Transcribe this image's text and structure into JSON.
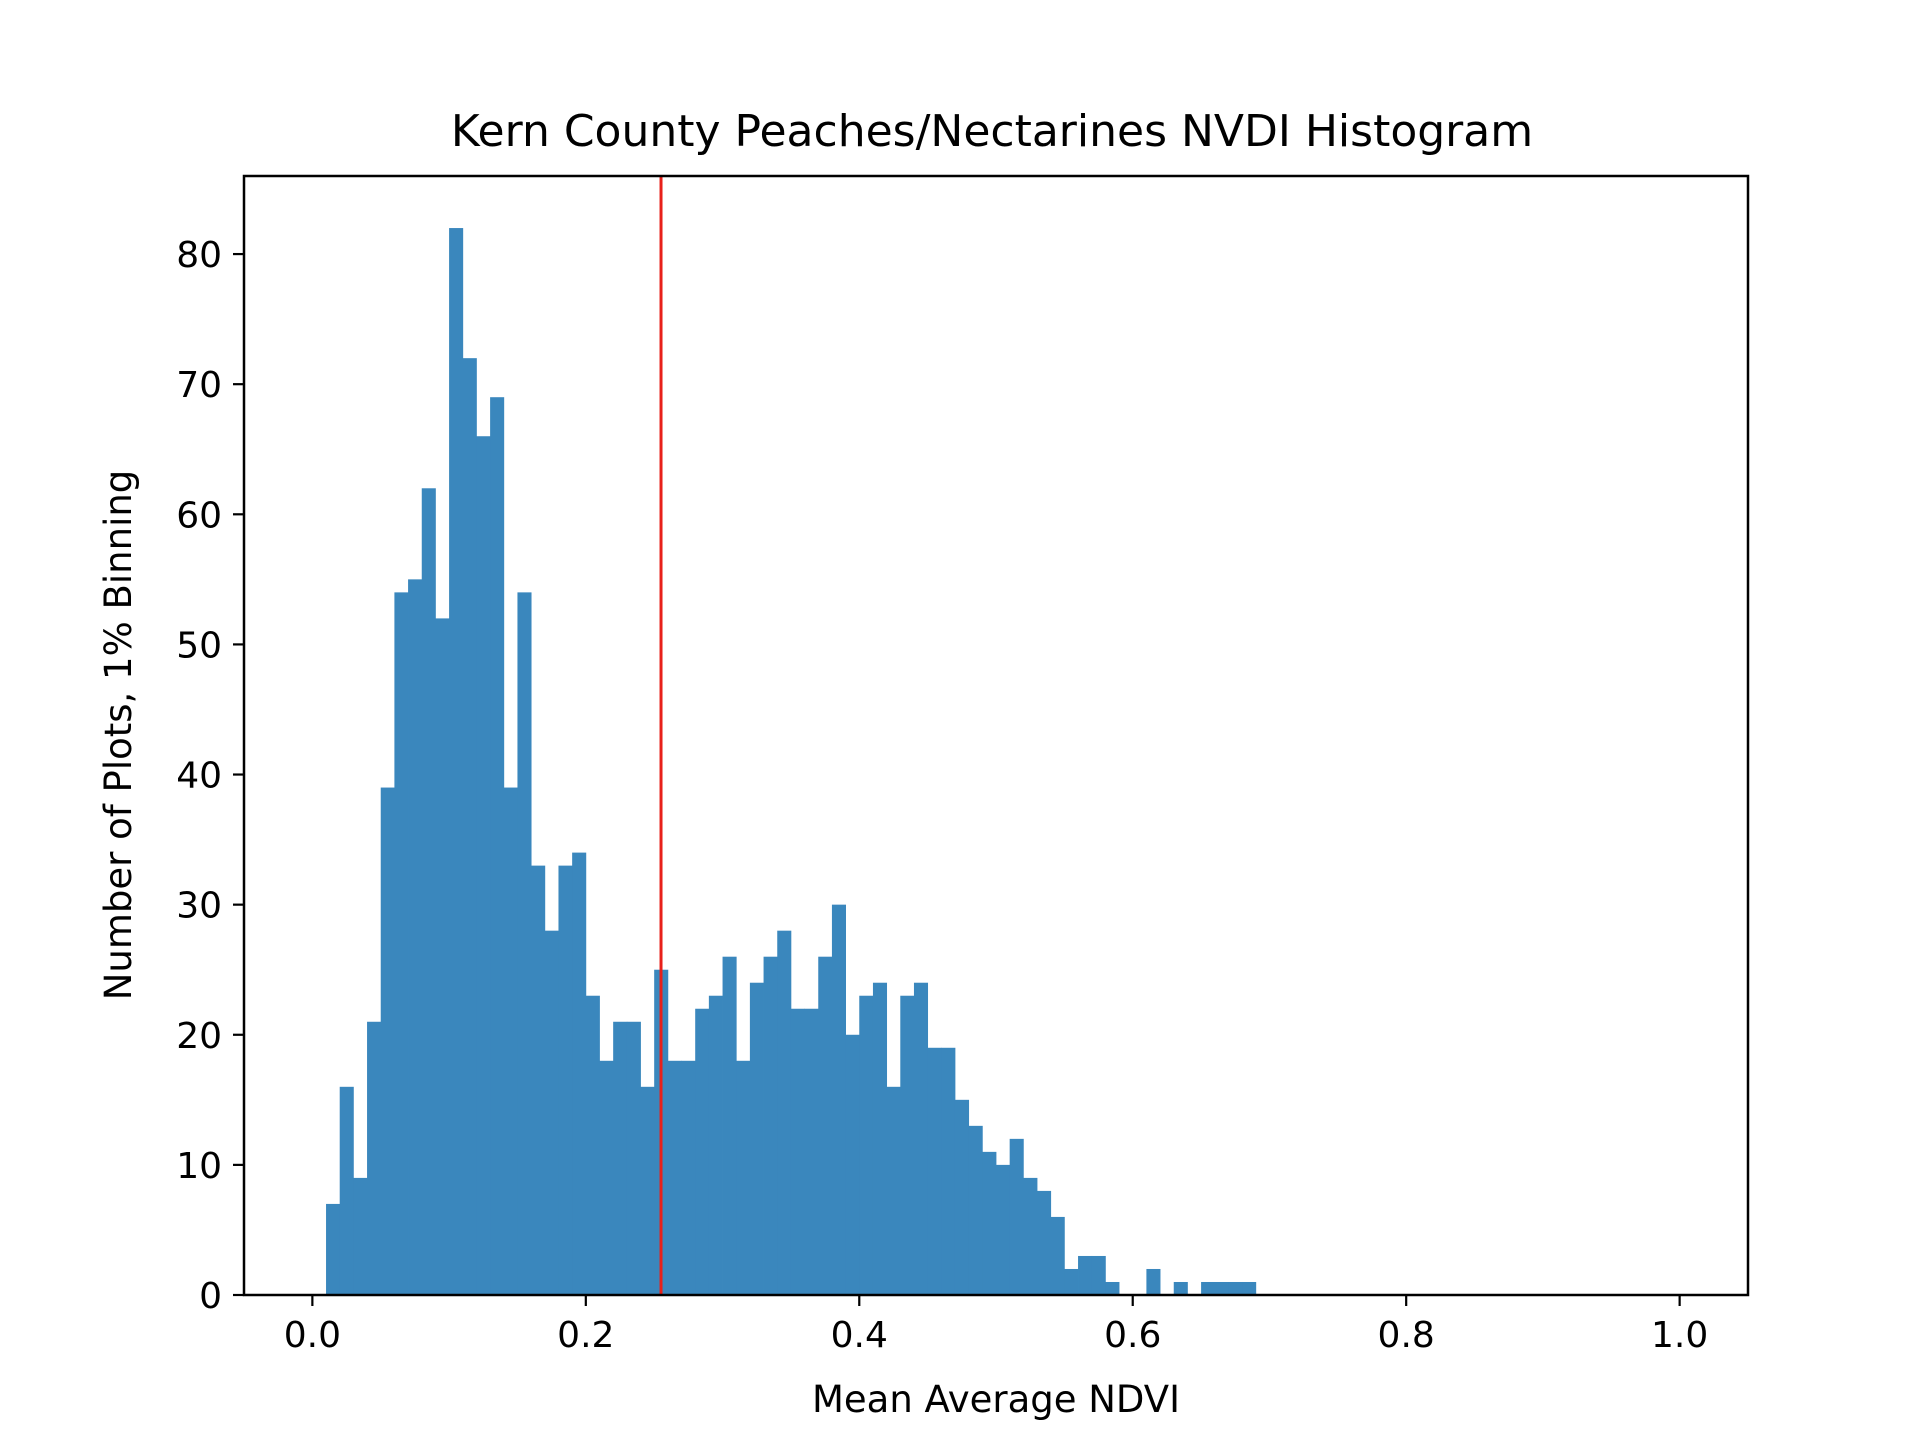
{
  "chart_data": {
    "type": "bar",
    "title": "Kern County Peaches/Nectarines NVDI Histogram",
    "xlabel": "Mean Average NDVI",
    "ylabel": "Number of Plots, 1% Binning",
    "xlim": [
      -0.05,
      1.05
    ],
    "ylim": [
      0,
      86
    ],
    "bin_width": 0.01,
    "bin_starts": [
      0.01,
      0.02,
      0.03,
      0.04,
      0.05,
      0.06,
      0.07,
      0.08,
      0.09,
      0.1,
      0.11,
      0.12,
      0.13,
      0.14,
      0.15,
      0.16,
      0.17,
      0.18,
      0.19,
      0.2,
      0.21,
      0.22,
      0.23,
      0.24,
      0.25,
      0.26,
      0.27,
      0.28,
      0.29,
      0.3,
      0.31,
      0.32,
      0.33,
      0.34,
      0.35,
      0.36,
      0.37,
      0.38,
      0.39,
      0.4,
      0.41,
      0.42,
      0.43,
      0.44,
      0.45,
      0.46,
      0.47,
      0.48,
      0.49,
      0.5,
      0.51,
      0.52,
      0.53,
      0.54,
      0.55,
      0.56,
      0.57,
      0.58,
      0.59,
      0.6,
      0.61,
      0.62,
      0.63,
      0.64,
      0.65,
      0.66,
      0.67,
      0.68
    ],
    "values": [
      7,
      16,
      9,
      21,
      39,
      54,
      55,
      62,
      52,
      82,
      72,
      66,
      69,
      39,
      54,
      33,
      28,
      33,
      34,
      23,
      18,
      21,
      21,
      16,
      25,
      18,
      18,
      22,
      23,
      26,
      18,
      24,
      26,
      28,
      22,
      22,
      26,
      30,
      20,
      23,
      24,
      16,
      23,
      24,
      19,
      19,
      15,
      13,
      11,
      10,
      12,
      9,
      8,
      6,
      2,
      3,
      3,
      1,
      0,
      0,
      2,
      0,
      1,
      0,
      1,
      1,
      1,
      1
    ],
    "bar_color": "#3a87bd",
    "reference_line": {
      "x": 0.255,
      "color": "#e8201a"
    },
    "x_ticks": [
      0.0,
      0.2,
      0.4,
      0.6,
      0.8,
      1.0
    ],
    "x_tick_labels": [
      "0.0",
      "0.2",
      "0.4",
      "0.6",
      "0.8",
      "1.0"
    ],
    "y_ticks": [
      0,
      10,
      20,
      30,
      40,
      50,
      60,
      70,
      80
    ],
    "y_tick_labels": [
      "0",
      "10",
      "20",
      "30",
      "40",
      "50",
      "60",
      "70",
      "80"
    ],
    "grid": false,
    "legend": "none"
  }
}
